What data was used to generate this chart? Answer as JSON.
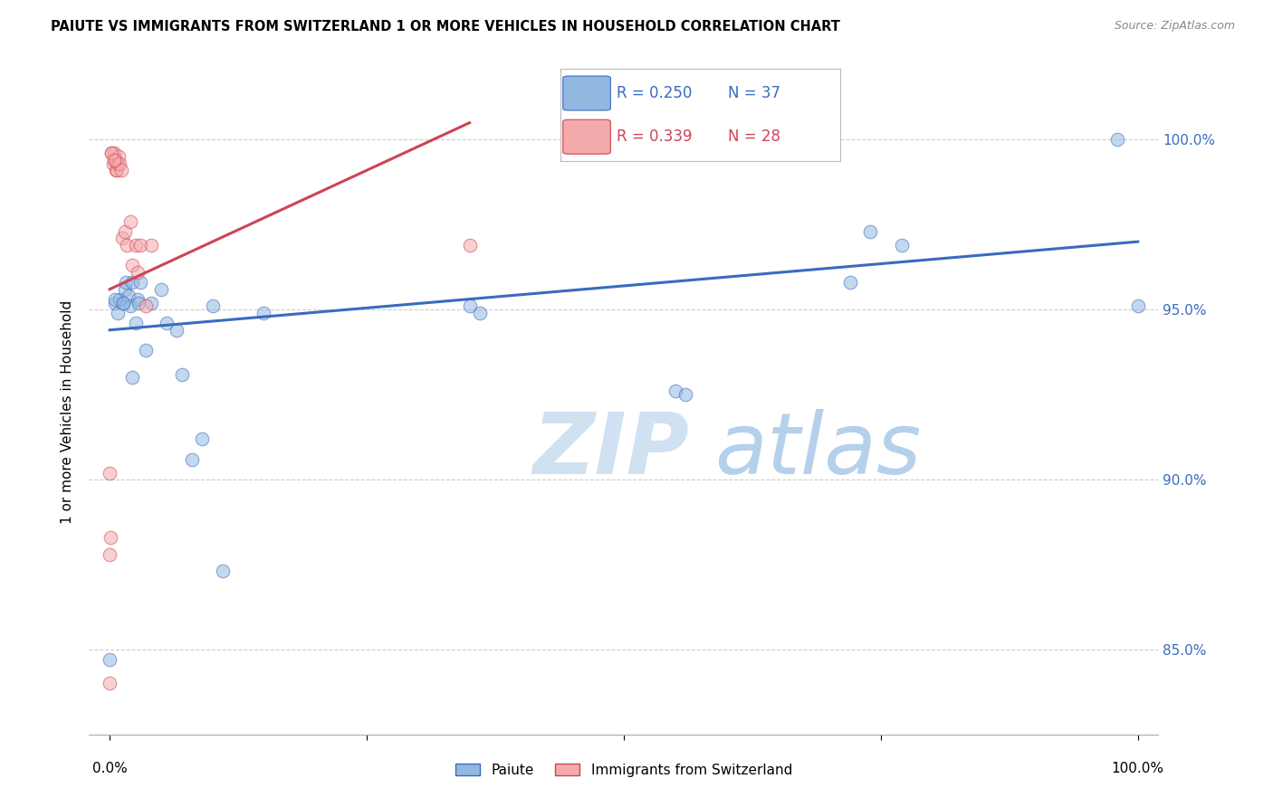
{
  "title": "PAIUTE VS IMMIGRANTS FROM SWITZERLAND 1 OR MORE VEHICLES IN HOUSEHOLD CORRELATION CHART",
  "source": "Source: ZipAtlas.com",
  "ylabel": "1 or more Vehicles in Household",
  "legend_label1": "Paiute",
  "legend_label2": "Immigrants from Switzerland",
  "R1": 0.25,
  "N1": 37,
  "R2": 0.339,
  "N2": 28,
  "color_blue": "#92B8E0",
  "color_pink": "#F4AAAA",
  "trendline_blue": "#3A6BBF",
  "trendline_pink": "#CC4455",
  "watermark_zip": "ZIP",
  "watermark_atlas": "atlas",
  "ytick_labels": [
    "85.0%",
    "90.0%",
    "95.0%",
    "100.0%"
  ],
  "ytick_values": [
    0.85,
    0.9,
    0.95,
    1.0
  ],
  "xlim": [
    -0.02,
    1.02
  ],
  "ylim": [
    0.825,
    1.015
  ],
  "blue_x": [
    0.0,
    0.005,
    0.008,
    0.01,
    0.013,
    0.015,
    0.016,
    0.018,
    0.02,
    0.022,
    0.025,
    0.027,
    0.028,
    0.03,
    0.035,
    0.04,
    0.05,
    0.055,
    0.065,
    0.07,
    0.08,
    0.09,
    0.1,
    0.11,
    0.35,
    0.36,
    0.55,
    0.56,
    0.72,
    0.74,
    0.77,
    0.98,
    1.0,
    0.15,
    0.005,
    0.013,
    0.022
  ],
  "blue_y": [
    0.847,
    0.952,
    0.949,
    0.953,
    0.952,
    0.956,
    0.958,
    0.954,
    0.951,
    0.958,
    0.946,
    0.953,
    0.952,
    0.958,
    0.938,
    0.952,
    0.956,
    0.946,
    0.944,
    0.931,
    0.906,
    0.912,
    0.951,
    0.873,
    0.951,
    0.949,
    0.926,
    0.925,
    0.958,
    0.973,
    0.969,
    1.0,
    0.951,
    0.949,
    0.953,
    0.952,
    0.93
  ],
  "pink_x": [
    0.0,
    0.001,
    0.002,
    0.003,
    0.004,
    0.005,
    0.006,
    0.006,
    0.007,
    0.008,
    0.009,
    0.01,
    0.011,
    0.012,
    0.015,
    0.017,
    0.02,
    0.022,
    0.025,
    0.027,
    0.03,
    0.035,
    0.04,
    0.35,
    0.0,
    0.002,
    0.004,
    0.0
  ],
  "pink_y": [
    0.878,
    0.883,
    0.996,
    0.993,
    0.996,
    0.994,
    0.994,
    0.991,
    0.991,
    0.993,
    0.995,
    0.993,
    0.991,
    0.971,
    0.973,
    0.969,
    0.976,
    0.963,
    0.969,
    0.961,
    0.969,
    0.951,
    0.969,
    0.969,
    0.84,
    0.996,
    0.994,
    0.902
  ],
  "blue_trend_x": [
    0.0,
    1.0
  ],
  "blue_trend_y": [
    0.944,
    0.97
  ],
  "pink_trend_x": [
    0.0,
    0.35
  ],
  "pink_trend_y": [
    0.956,
    1.005
  ],
  "grid_color": "#CCCCCC",
  "background_color": "#FFFFFF"
}
